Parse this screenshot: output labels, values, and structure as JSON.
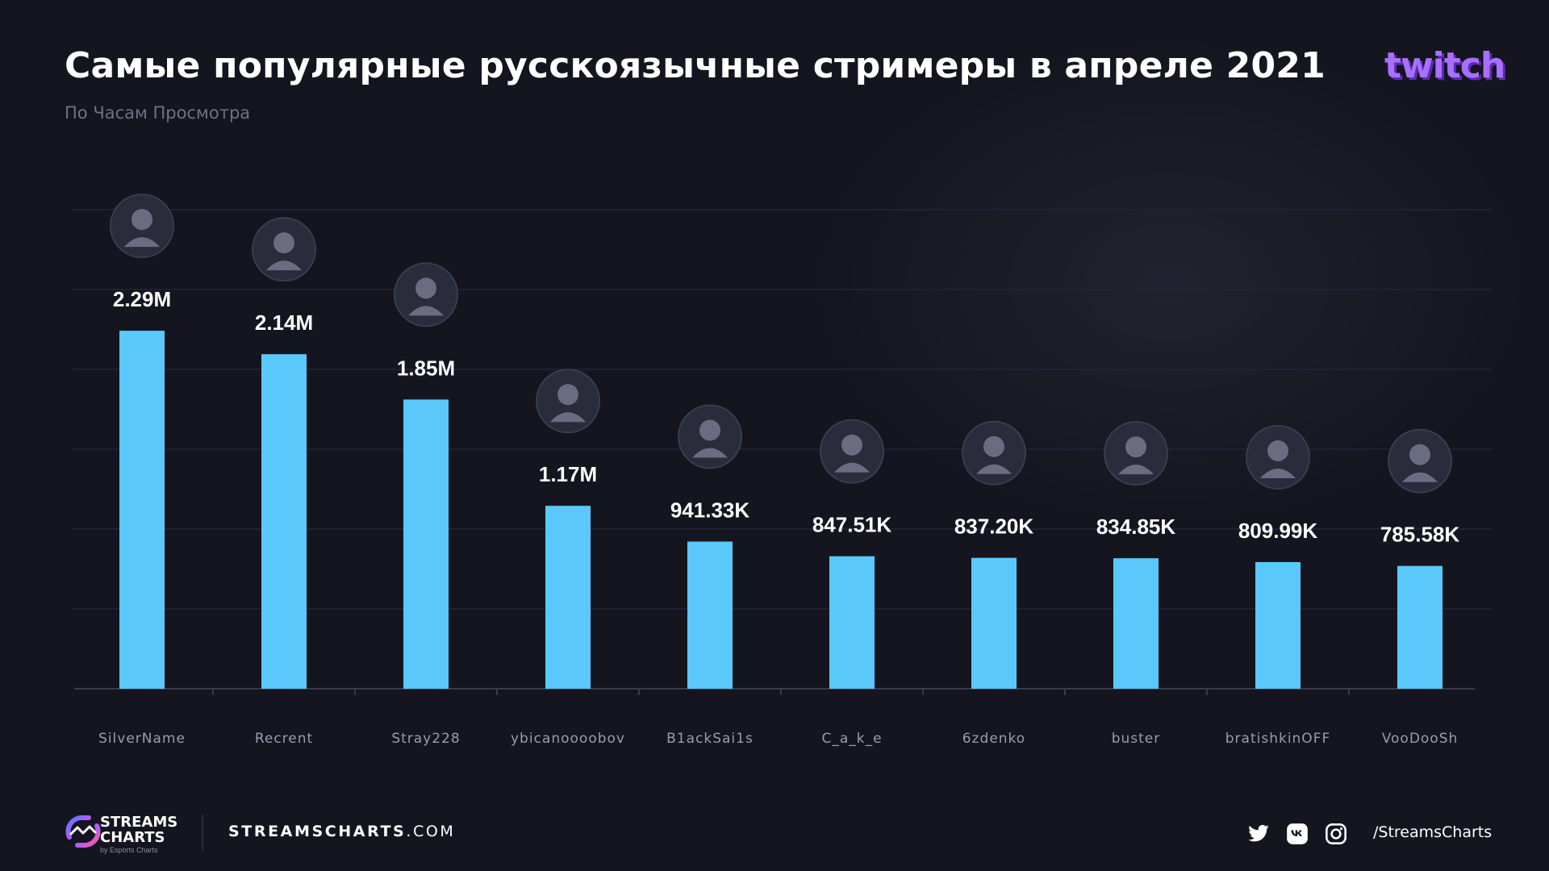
{
  "header": {
    "title": "Самые популярные русскоязычные стримеры в апреле 2021",
    "subtitle": "По Часам Просмотра",
    "platform_logo": "twitch"
  },
  "colors": {
    "background": "#15151f",
    "bar": "#5bc8fc",
    "axis": "#3a3b4a",
    "label": "#9a9cae",
    "twitch": "#a970ff"
  },
  "chart_data": {
    "type": "bar",
    "title": "Самые популярные русскоязычные стримеры в апреле 2021",
    "subtitle": "По Часам Просмотра",
    "categories": [
      "SilverName",
      "Recrent",
      "Stray228",
      "ybicanoooobov",
      "B1ackSai1s",
      "C_a_k_e",
      "6zdenko",
      "buster",
      "bratishkinOFF",
      "VooDooSh"
    ],
    "values": [
      2290000,
      2140000,
      1850000,
      1170000,
      941330,
      847510,
      837200,
      834850,
      809990,
      785580
    ],
    "value_labels": [
      "2.29M",
      "2.14M",
      "1.85M",
      "1.17M",
      "941.33K",
      "847.51K",
      "837.20K",
      "834.85K",
      "809.99K",
      "785.58K"
    ],
    "ylim": [
      0,
      2600000
    ],
    "grid": true,
    "avatars": [
      "avatar-icon",
      "avatar-icon",
      "avatar-icon",
      "avatar-icon",
      "avatar-icon",
      "avatar-icon",
      "avatar-icon",
      "avatar-icon",
      "avatar-icon",
      "avatar-icon"
    ]
  },
  "footer": {
    "brand_line1": "STREAMS",
    "brand_line2": "CHARTS",
    "brand_by": "by Esports Charts",
    "site_bold": "STREAMSCHARTS",
    "site_rest": ".COM",
    "social_icons": [
      "twitter-icon",
      "vk-icon",
      "instagram-icon"
    ],
    "handle": "/StreamsCharts"
  }
}
